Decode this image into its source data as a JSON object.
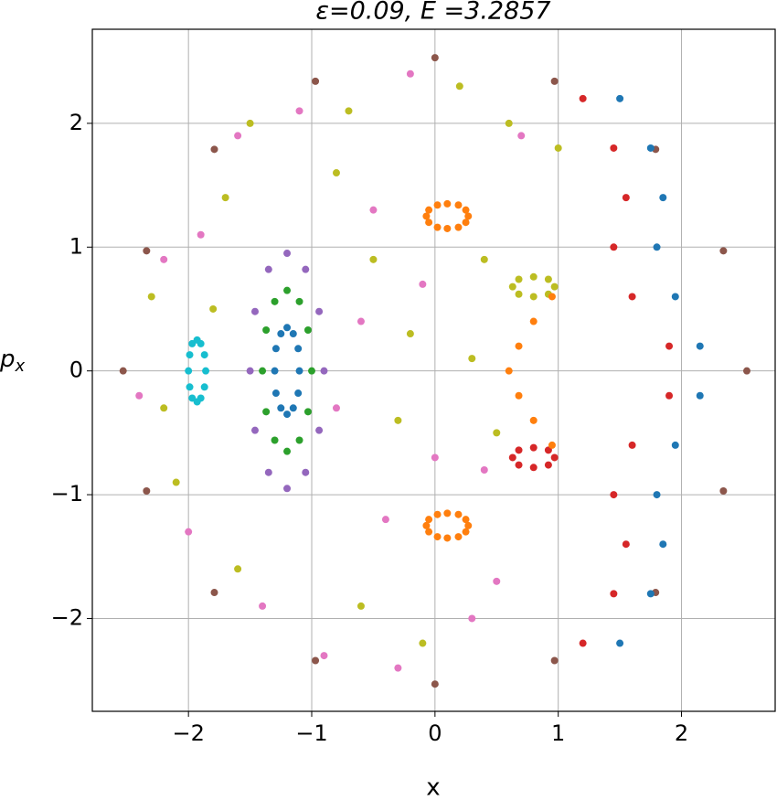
{
  "chart_data": {
    "type": "scatter",
    "title": "ε=0.09, E =3.2857",
    "xlabel": "x",
    "ylabel": {
      "base": "p",
      "sub": "x"
    },
    "xlim": [
      -2.78,
      2.76
    ],
    "ylim": [
      -2.75,
      2.76
    ],
    "grid": true,
    "xticks": [
      {
        "value": -2,
        "label": "−2"
      },
      {
        "value": -1,
        "label": "−1"
      },
      0,
      1,
      2
    ],
    "yticks": [
      {
        "value": -2,
        "label": "−2"
      },
      {
        "value": -1,
        "label": "−1"
      },
      0,
      1,
      2
    ],
    "series": [
      {
        "color": "#1f77b4",
        "x": [
          -1.1,
          -1.11,
          -1.15,
          -1.2,
          -1.25,
          -1.29,
          -1.3,
          -1.29,
          -1.25,
          -1.2,
          -1.15,
          -1.11
        ],
        "values": [
          0,
          0.18,
          0.3,
          0.35,
          0.3,
          0.18,
          0,
          -0.18,
          -0.3,
          -0.35,
          -0.3,
          -0.18
        ]
      },
      {
        "color": "#2ca02c",
        "x": [
          -1.0,
          -1.03,
          -1.1,
          -1.2,
          -1.3,
          -1.37,
          -1.4,
          -1.37,
          -1.3,
          -1.2,
          -1.1,
          -1.03
        ],
        "values": [
          0,
          0.33,
          0.56,
          0.65,
          0.56,
          0.33,
          0,
          -0.33,
          -0.56,
          -0.65,
          -0.56,
          -0.33
        ]
      },
      {
        "color": "#9467bd",
        "x": [
          -0.9,
          -0.94,
          -1.05,
          -1.2,
          -1.35,
          -1.46,
          -1.5,
          -1.46,
          -1.35,
          -1.2,
          -1.05,
          -0.94
        ],
        "values": [
          0,
          0.48,
          0.82,
          0.95,
          0.82,
          0.48,
          0,
          -0.48,
          -0.82,
          -0.95,
          -0.82,
          -0.48
        ]
      },
      {
        "color": "#17becf",
        "x": [
          -1.86,
          -1.87,
          -1.9,
          -1.93,
          -1.97,
          -1.99,
          -2.0,
          -1.99,
          -1.97,
          -1.93,
          -1.9,
          -1.87
        ],
        "values": [
          0,
          0.13,
          0.22,
          0.25,
          0.22,
          0.13,
          0,
          -0.13,
          -0.22,
          -0.25,
          -0.22,
          -0.13
        ]
      },
      {
        "color": "#ff7f0e",
        "x": [
          0.27,
          0.25,
          0.19,
          0.1,
          0.02,
          -0.05,
          -0.07,
          -0.05,
          0.02,
          0.1,
          0.19,
          0.25
        ],
        "values": [
          1.25,
          1.3,
          1.34,
          1.35,
          1.34,
          1.3,
          1.25,
          1.2,
          1.16,
          1.15,
          1.16,
          1.2
        ]
      },
      {
        "color": "#ff7f0e",
        "x": [
          0.27,
          0.25,
          0.19,
          0.1,
          0.02,
          -0.05,
          -0.07,
          -0.05,
          0.02,
          0.1,
          0.19,
          0.25
        ],
        "values": [
          -1.25,
          -1.2,
          -1.16,
          -1.15,
          -1.16,
          -1.2,
          -1.25,
          -1.3,
          -1.34,
          -1.35,
          -1.34,
          -1.3
        ]
      },
      {
        "color": "#bcbd22",
        "x": [
          0.97,
          0.92,
          0.8,
          0.68,
          0.63,
          0.68,
          0.8,
          0.92
        ],
        "values": [
          0.68,
          0.74,
          0.76,
          0.74,
          0.68,
          0.62,
          0.6,
          0.62
        ]
      },
      {
        "color": "#d62728",
        "x": [
          0.97,
          0.92,
          0.8,
          0.68,
          0.63,
          0.68,
          0.8,
          0.92
        ],
        "values": [
          -0.7,
          -0.64,
          -0.62,
          -0.64,
          -0.7,
          -0.76,
          -0.78,
          -0.76
        ]
      },
      {
        "color": "#8c564b",
        "x": [
          2.53,
          2.34,
          1.79,
          0.97,
          0,
          -0.97,
          -1.79,
          -2.34,
          -2.53,
          -2.34,
          -1.79,
          -0.97,
          0,
          0.97,
          1.79,
          2.34
        ],
        "values": [
          0,
          0.97,
          1.79,
          2.34,
          2.53,
          2.34,
          1.79,
          0.97,
          0,
          -0.97,
          -1.79,
          -2.34,
          -2.53,
          -2.34,
          -1.79,
          -0.97
        ]
      },
      {
        "color": "#d62728",
        "x": [
          1.2,
          1.45,
          1.55,
          1.45,
          1.6,
          1.9,
          1.9,
          1.6,
          1.45,
          1.55,
          1.45,
          1.2
        ],
        "values": [
          2.2,
          1.8,
          1.4,
          1.0,
          0.6,
          0.2,
          -0.2,
          -0.6,
          -1.0,
          -1.4,
          -1.8,
          -2.2
        ]
      },
      {
        "color": "#1f77b4",
        "x": [
          1.5,
          1.75,
          1.85,
          1.8,
          1.95,
          2.15,
          2.15,
          1.95,
          1.8,
          1.85,
          1.75,
          1.5
        ],
        "values": [
          2.2,
          1.8,
          1.4,
          1.0,
          0.6,
          0.2,
          -0.2,
          -0.6,
          -1.0,
          -1.4,
          -1.8,
          -2.2
        ]
      },
      {
        "color": "#ff7f0e",
        "x": [
          0.95,
          0.8,
          0.68,
          0.6,
          0.68,
          0.8,
          0.95
        ],
        "values": [
          0.6,
          0.4,
          0.2,
          0,
          -0.2,
          -0.4,
          -0.6
        ]
      },
      {
        "color": "#bcbd22",
        "x": [
          -2.3,
          -2.1,
          -1.7,
          -1.6,
          -0.7,
          -0.5,
          -0.3,
          -0.2,
          0.3,
          0.5,
          0.4,
          -0.6,
          -1.8,
          -2.2,
          -0.8,
          0.2,
          0.6,
          1.0,
          -0.1,
          -1.5
        ],
        "values": [
          0.6,
          -0.9,
          1.4,
          -1.6,
          2.1,
          0.9,
          -0.4,
          0.3,
          0.1,
          -0.5,
          0.9,
          -1.9,
          0.5,
          -0.3,
          1.6,
          2.3,
          2.0,
          1.8,
          -2.2,
          2.0
        ]
      },
      {
        "color": "#e377c2",
        "x": [
          -2.4,
          -1.9,
          -1.4,
          -0.8,
          -0.4,
          -0.1,
          0.4,
          0.7,
          -0.6,
          -0.3,
          -2.0,
          -1.6,
          -1.1,
          0.3,
          -0.5,
          0.0,
          0.5,
          -2.2,
          -0.2,
          -0.9
        ],
        "values": [
          -0.2,
          1.1,
          -1.9,
          -0.3,
          -1.2,
          0.7,
          -0.8,
          1.9,
          0.4,
          -2.4,
          -1.3,
          1.9,
          2.1,
          -2.0,
          1.3,
          -0.7,
          -1.7,
          0.9,
          2.4,
          -2.3
        ]
      }
    ]
  }
}
